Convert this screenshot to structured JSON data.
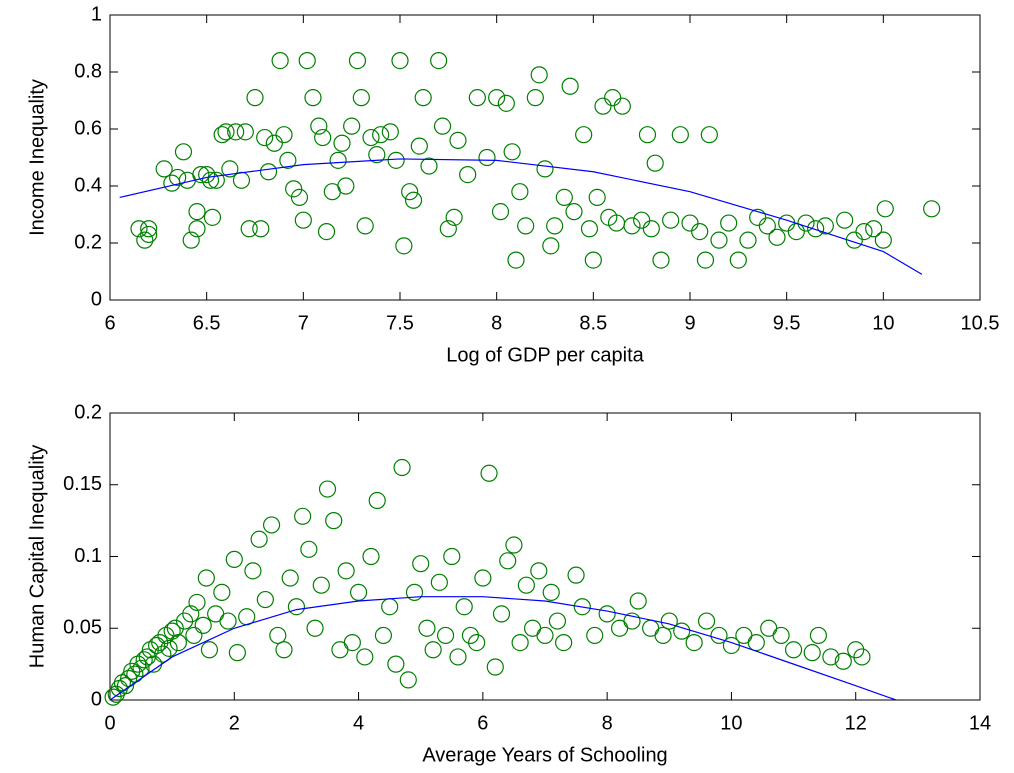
{
  "chart_data": [
    {
      "type": "scatter",
      "xlabel": "Log of GDP per capita",
      "ylabel": "Income Inequality",
      "xlim": [
        6,
        10.5
      ],
      "ylim": [
        0,
        1
      ],
      "xticks": [
        6,
        6.5,
        7,
        7.5,
        8,
        8.5,
        9,
        9.5,
        10,
        10.5
      ],
      "yticks": [
        0,
        0.2,
        0.4,
        0.6,
        0.8,
        1
      ],
      "series": [
        {
          "mode": "markers",
          "color": "#008000",
          "x": [
            6.15,
            6.2,
            6.18,
            6.2,
            6.28,
            6.32,
            6.35,
            6.38,
            6.4,
            6.42,
            6.45,
            6.45,
            6.47,
            6.5,
            6.52,
            6.53,
            6.55,
            6.58,
            6.6,
            6.62,
            6.65,
            6.68,
            6.7,
            6.72,
            6.75,
            6.78,
            6.8,
            6.82,
            6.85,
            6.88,
            6.9,
            6.92,
            6.95,
            6.98,
            7.0,
            7.02,
            7.05,
            7.08,
            7.1,
            7.12,
            7.15,
            7.18,
            7.2,
            7.22,
            7.25,
            7.28,
            7.3,
            7.32,
            7.35,
            7.38,
            7.4,
            7.45,
            7.48,
            7.5,
            7.52,
            7.55,
            7.57,
            7.6,
            7.62,
            7.65,
            7.7,
            7.72,
            7.75,
            7.78,
            7.8,
            7.85,
            7.9,
            7.95,
            8.0,
            8.02,
            8.05,
            8.08,
            8.1,
            8.12,
            8.15,
            8.2,
            8.22,
            8.25,
            8.28,
            8.3,
            8.35,
            8.38,
            8.4,
            8.45,
            8.48,
            8.5,
            8.52,
            8.55,
            8.58,
            8.6,
            8.62,
            8.65,
            8.7,
            8.75,
            8.78,
            8.8,
            8.82,
            8.85,
            8.9,
            8.95,
            9.0,
            9.05,
            9.08,
            9.1,
            9.15,
            9.2,
            9.25,
            9.3,
            9.35,
            9.4,
            9.45,
            9.5,
            9.55,
            9.6,
            9.65,
            9.7,
            9.8,
            9.85,
            9.9,
            9.95,
            10.0,
            10.01,
            10.25
          ],
          "values": [
            0.25,
            0.25,
            0.21,
            0.23,
            0.46,
            0.41,
            0.43,
            0.52,
            0.42,
            0.21,
            0.25,
            0.31,
            0.44,
            0.44,
            0.42,
            0.29,
            0.42,
            0.58,
            0.59,
            0.46,
            0.59,
            0.42,
            0.59,
            0.25,
            0.71,
            0.25,
            0.57,
            0.45,
            0.55,
            0.84,
            0.58,
            0.49,
            0.39,
            0.36,
            0.28,
            0.84,
            0.71,
            0.61,
            0.57,
            0.24,
            0.38,
            0.49,
            0.55,
            0.4,
            0.61,
            0.84,
            0.71,
            0.26,
            0.57,
            0.51,
            0.58,
            0.59,
            0.49,
            0.84,
            0.19,
            0.38,
            0.35,
            0.54,
            0.71,
            0.47,
            0.84,
            0.61,
            0.25,
            0.29,
            0.56,
            0.44,
            0.71,
            0.5,
            0.71,
            0.31,
            0.69,
            0.52,
            0.14,
            0.38,
            0.26,
            0.71,
            0.79,
            0.46,
            0.19,
            0.26,
            0.36,
            0.75,
            0.31,
            0.58,
            0.25,
            0.14,
            0.36,
            0.68,
            0.29,
            0.71,
            0.27,
            0.68,
            0.26,
            0.28,
            0.58,
            0.25,
            0.48,
            0.14,
            0.28,
            0.58,
            0.27,
            0.24,
            0.14,
            0.58,
            0.21,
            0.27,
            0.14,
            0.21,
            0.29,
            0.26,
            0.22,
            0.27,
            0.24,
            0.27,
            0.25,
            0.26,
            0.28,
            0.21,
            0.24,
            0.25,
            0.21,
            0.32,
            0.32
          ]
        },
        {
          "mode": "line",
          "color": "#0000ff",
          "x": [
            6.05,
            6.5,
            7,
            7.5,
            8,
            8.5,
            9,
            9.5,
            10,
            10.2
          ],
          "values": [
            0.36,
            0.43,
            0.475,
            0.495,
            0.49,
            0.45,
            0.38,
            0.28,
            0.17,
            0.09
          ]
        }
      ]
    },
    {
      "type": "scatter",
      "xlabel": "Average Years of Schooling",
      "ylabel": "Human Capital Inequality",
      "xlim": [
        0,
        14
      ],
      "ylim": [
        0,
        0.2
      ],
      "xticks": [
        0,
        2,
        4,
        6,
        8,
        10,
        12,
        14
      ],
      "yticks": [
        0,
        0.05,
        0.1,
        0.15,
        0.2
      ],
      "series": [
        {
          "mode": "markers",
          "color": "#008000",
          "x": [
            0.05,
            0.1,
            0.15,
            0.2,
            0.25,
            0.3,
            0.35,
            0.4,
            0.45,
            0.5,
            0.55,
            0.6,
            0.65,
            0.7,
            0.75,
            0.8,
            0.85,
            0.9,
            0.95,
            1.0,
            1.05,
            1.1,
            1.2,
            1.3,
            1.35,
            1.4,
            1.5,
            1.55,
            1.6,
            1.7,
            1.8,
            1.9,
            2.0,
            2.05,
            2.2,
            2.3,
            2.4,
            2.5,
            2.6,
            2.7,
            2.8,
            2.9,
            3.0,
            3.1,
            3.2,
            3.3,
            3.4,
            3.5,
            3.6,
            3.7,
            3.8,
            3.9,
            4.0,
            4.1,
            4.2,
            4.3,
            4.4,
            4.5,
            4.6,
            4.7,
            4.8,
            4.9,
            5.0,
            5.1,
            5.2,
            5.3,
            5.4,
            5.5,
            5.6,
            5.7,
            5.8,
            5.9,
            6.0,
            6.1,
            6.2,
            6.3,
            6.4,
            6.5,
            6.6,
            6.7,
            6.8,
            6.9,
            7.0,
            7.1,
            7.2,
            7.3,
            7.5,
            7.6,
            7.8,
            8.0,
            8.2,
            8.4,
            8.5,
            8.7,
            8.9,
            9.0,
            9.2,
            9.4,
            9.6,
            9.8,
            10.0,
            10.2,
            10.4,
            10.6,
            10.8,
            11.0,
            11.3,
            11.4,
            11.6,
            11.8,
            12.0,
            12.1
          ],
          "values": [
            0.002,
            0.004,
            0.008,
            0.012,
            0.01,
            0.015,
            0.02,
            0.018,
            0.025,
            0.022,
            0.028,
            0.03,
            0.035,
            0.025,
            0.038,
            0.04,
            0.032,
            0.045,
            0.036,
            0.048,
            0.05,
            0.04,
            0.055,
            0.06,
            0.045,
            0.068,
            0.052,
            0.085,
            0.035,
            0.06,
            0.075,
            0.055,
            0.098,
            0.033,
            0.058,
            0.09,
            0.112,
            0.07,
            0.122,
            0.045,
            0.035,
            0.085,
            0.065,
            0.128,
            0.105,
            0.05,
            0.08,
            0.147,
            0.125,
            0.035,
            0.09,
            0.04,
            0.075,
            0.03,
            0.1,
            0.139,
            0.045,
            0.065,
            0.025,
            0.162,
            0.014,
            0.075,
            0.095,
            0.05,
            0.035,
            0.082,
            0.045,
            0.1,
            0.03,
            0.065,
            0.045,
            0.04,
            0.085,
            0.158,
            0.023,
            0.06,
            0.097,
            0.108,
            0.04,
            0.08,
            0.05,
            0.09,
            0.045,
            0.075,
            0.055,
            0.04,
            0.087,
            0.065,
            0.045,
            0.06,
            0.05,
            0.055,
            0.069,
            0.05,
            0.045,
            0.055,
            0.048,
            0.04,
            0.055,
            0.045,
            0.038,
            0.045,
            0.04,
            0.05,
            0.045,
            0.035,
            0.033,
            0.045,
            0.03,
            0.027,
            0.035,
            0.03
          ]
        },
        {
          "mode": "line",
          "color": "#0000ff",
          "x": [
            0,
            1,
            2,
            3,
            4,
            5,
            6,
            7,
            8,
            9,
            10,
            11,
            12,
            12.65
          ],
          "values": [
            0.0,
            0.03,
            0.05,
            0.063,
            0.069,
            0.072,
            0.072,
            0.069,
            0.062,
            0.053,
            0.04,
            0.025,
            0.01,
            0
          ]
        }
      ]
    }
  ]
}
